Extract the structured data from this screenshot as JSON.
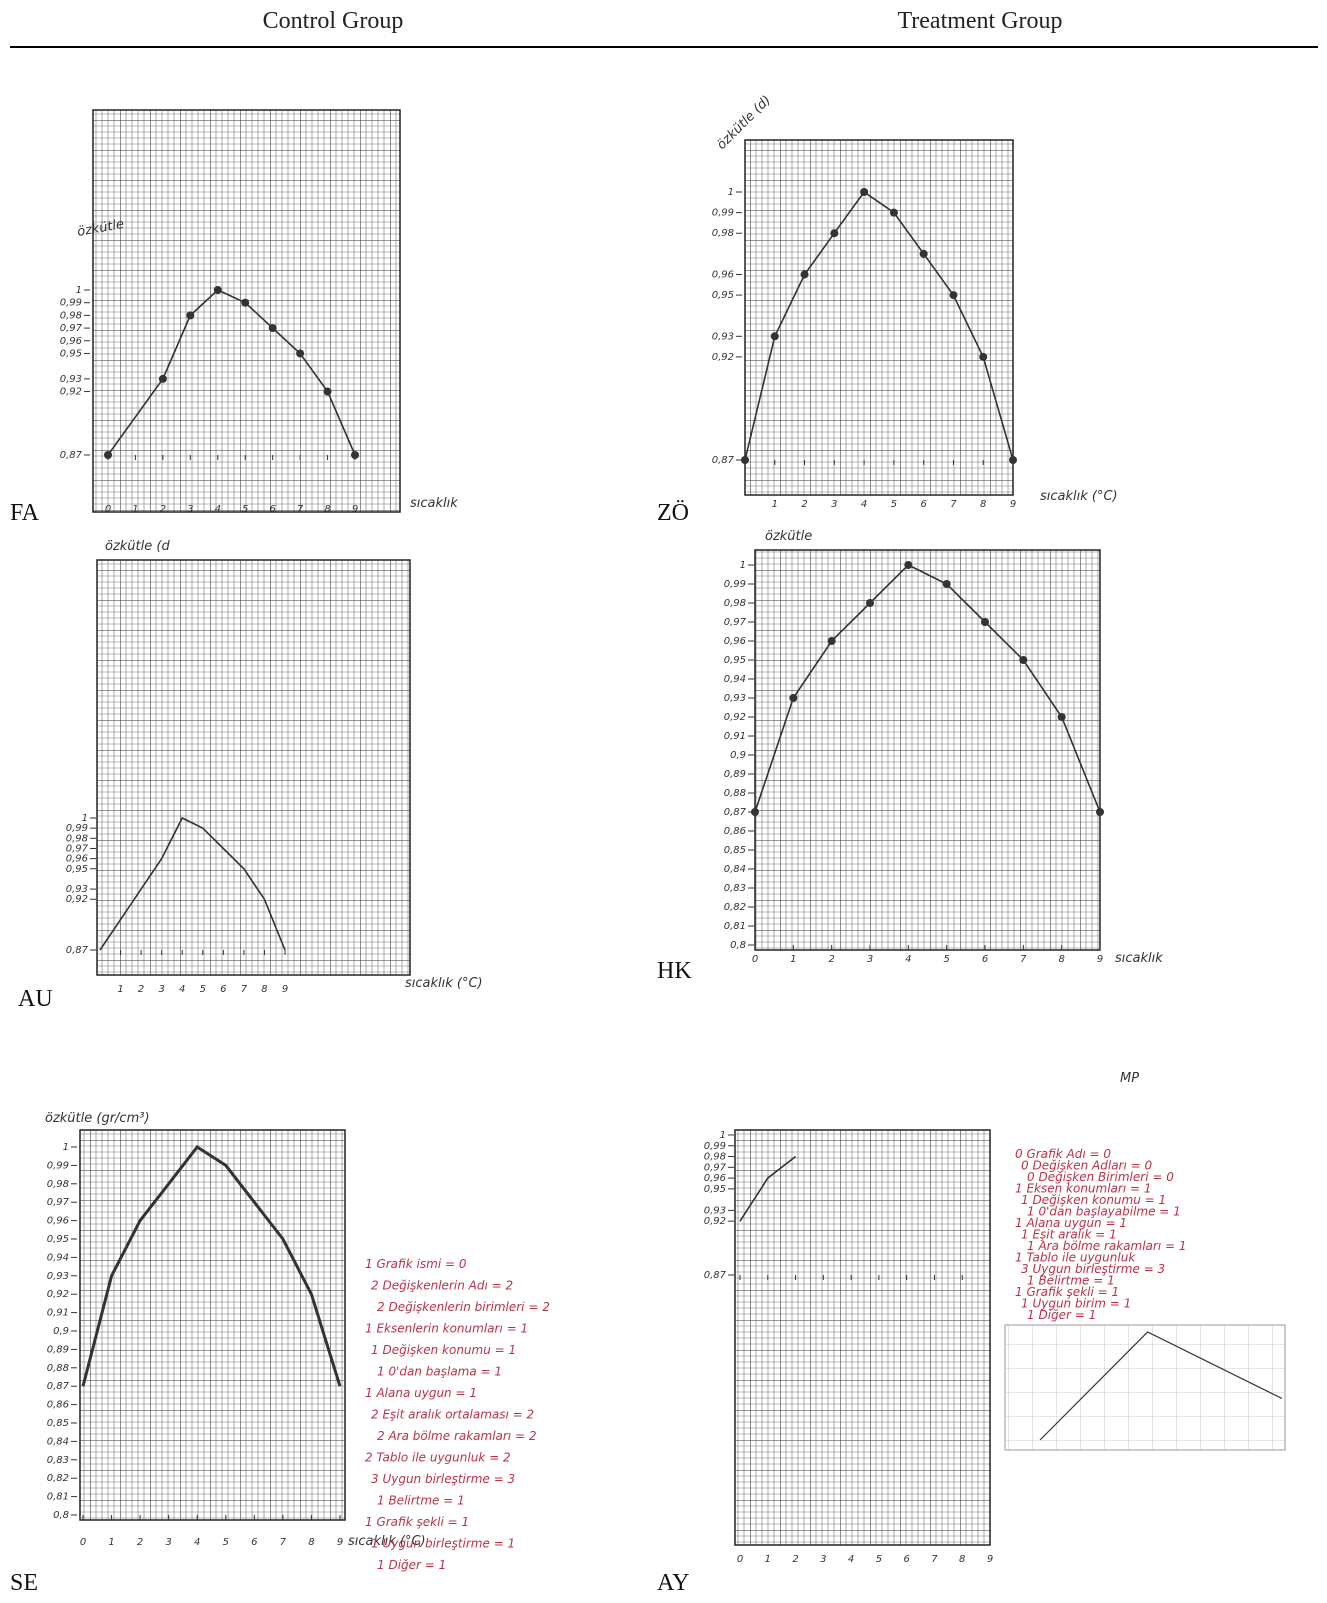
{
  "header": {
    "left": "Control Group",
    "right": "Treatment Group"
  },
  "panels": [
    {
      "label": "FA",
      "ylabel": "özkütle",
      "xlabel": "sıcaklık",
      "xlim": [
        0,
        9
      ],
      "ylim": [
        0.87,
        1
      ],
      "yticks": [
        1,
        {
          "value": 0.99,
          "label": "0,99"
        },
        {
          "value": 0.98,
          "label": "0,98"
        },
        {
          "value": 0.97,
          "label": "0,97"
        },
        {
          "value": 0.96,
          "label": "0,96"
        },
        {
          "value": 0.95,
          "label": "0,95"
        },
        {
          "value": 0.93,
          "label": "0,93"
        },
        {
          "value": 0.92,
          "label": "0,92"
        },
        {
          "value": 0.87,
          "label": "0,87"
        }
      ],
      "xticks": [
        0,
        1,
        2,
        3,
        4,
        5,
        6,
        7,
        8,
        9
      ],
      "x": [
        0,
        2,
        3,
        4,
        5,
        6,
        7,
        8,
        9
      ],
      "y": [
        0.87,
        0.93,
        0.98,
        1,
        0.99,
        0.97,
        0.95,
        0.92,
        0.87
      ]
    },
    {
      "label": "ZÖ",
      "ylabel": "özkütle (d)",
      "xlabel": "sıcaklık (°C)",
      "xlim": [
        0,
        9
      ],
      "ylim": [
        0.87,
        1
      ],
      "yticks": [
        1,
        {
          "value": 0.99,
          "label": "0,99"
        },
        {
          "value": 0.98,
          "label": "0,98"
        },
        {
          "value": 0.96,
          "label": "0,96"
        },
        {
          "value": 0.95,
          "label": "0,95"
        },
        {
          "value": 0.93,
          "label": "0,93"
        },
        {
          "value": 0.92,
          "label": "0,92"
        },
        {
          "value": 0.87,
          "label": "0,87"
        }
      ],
      "xticks": [
        1,
        2,
        3,
        4,
        5,
        6,
        7,
        8,
        9
      ],
      "x": [
        0,
        1,
        2,
        3,
        4,
        5,
        6,
        7,
        8,
        9
      ],
      "y": [
        0.87,
        0.93,
        0.96,
        0.98,
        1,
        0.99,
        0.97,
        0.95,
        0.92,
        0.87
      ]
    },
    {
      "label": "AU",
      "ylabel": "özkütle (d",
      "xlabel": "sıcaklık (°C)",
      "xlim": [
        0,
        9
      ],
      "ylim": [
        0.87,
        1
      ],
      "yticks": [
        1,
        {
          "value": 0.99,
          "label": "0,99"
        },
        {
          "value": 0.98,
          "label": "0,98"
        },
        {
          "value": 0.97,
          "label": "0,97"
        },
        {
          "value": 0.96,
          "label": "0,96"
        },
        {
          "value": 0.95,
          "label": "0,95"
        },
        {
          "value": 0.93,
          "label": "0,93"
        },
        {
          "value": 0.92,
          "label": "0,92"
        },
        {
          "value": 0.87,
          "label": "0,87"
        }
      ],
      "xticks": [
        1,
        2,
        3,
        4,
        5,
        6,
        7,
        8,
        9
      ],
      "x": [
        0,
        2,
        3,
        4,
        5,
        6,
        7,
        8,
        9
      ],
      "y": [
        0.87,
        0.93,
        0.96,
        1,
        0.99,
        0.97,
        0.95,
        0.92,
        0.87
      ]
    },
    {
      "label": "HK",
      "ylabel": "özkütle",
      "xlabel": "sıcaklık",
      "xlim": [
        0,
        9
      ],
      "ylim": [
        0.8,
        1
      ],
      "yticks": [
        1,
        {
          "value": 0.99,
          "label": "0,99"
        },
        {
          "value": 0.98,
          "label": "0,98"
        },
        {
          "value": 0.97,
          "label": "0,97"
        },
        {
          "value": 0.96,
          "label": "0,96"
        },
        {
          "value": 0.95,
          "label": "0,95"
        },
        {
          "value": 0.94,
          "label": "0,94"
        },
        {
          "value": 0.93,
          "label": "0,93"
        },
        {
          "value": 0.92,
          "label": "0,92"
        },
        {
          "value": 0.91,
          "label": "0,91"
        },
        {
          "value": 0.9,
          "label": "0,9"
        },
        {
          "value": 0.89,
          "label": "0,89"
        },
        {
          "value": 0.88,
          "label": "0,88"
        },
        {
          "value": 0.87,
          "label": "0,87"
        },
        {
          "value": 0.86,
          "label": "0,86"
        },
        {
          "value": 0.85,
          "label": "0,85"
        },
        {
          "value": 0.84,
          "label": "0,84"
        },
        {
          "value": 0.83,
          "label": "0,83"
        },
        {
          "value": 0.82,
          "label": "0,82"
        },
        {
          "value": 0.81,
          "label": "0,81"
        },
        {
          "value": 0.8,
          "label": "0,8"
        }
      ],
      "xticks": [
        0,
        1,
        2,
        3,
        4,
        5,
        6,
        7,
        8,
        9
      ],
      "x": [
        0,
        1,
        2,
        3,
        4,
        5,
        6,
        7,
        8,
        9
      ],
      "y": [
        0.87,
        0.93,
        0.96,
        0.98,
        1,
        0.99,
        0.97,
        0.95,
        0.92,
        0.87
      ]
    },
    {
      "label": "SE",
      "ylabel": "özkütle (gr/cm³)",
      "xlabel": "sıcaklık (°C)",
      "xlim": [
        0,
        9
      ],
      "ylim": [
        0.8,
        1
      ],
      "yticks": [
        1,
        {
          "value": 0.99,
          "label": "0,99"
        },
        {
          "value": 0.98,
          "label": "0,98"
        },
        {
          "value": 0.97,
          "label": "0,97"
        },
        {
          "value": 0.96,
          "label": "0,96"
        },
        {
          "value": 0.95,
          "label": "0,95"
        },
        {
          "value": 0.94,
          "label": "0,94"
        },
        {
          "value": 0.93,
          "label": "0,93"
        },
        {
          "value": 0.92,
          "label": "0,92"
        },
        {
          "value": 0.91,
          "label": "0,91"
        },
        {
          "value": 0.9,
          "label": "0,9"
        },
        {
          "value": 0.89,
          "label": "0,89"
        },
        {
          "value": 0.88,
          "label": "0,88"
        },
        {
          "value": 0.87,
          "label": "0,87"
        },
        {
          "value": 0.86,
          "label": "0,86"
        },
        {
          "value": 0.85,
          "label": "0,85"
        },
        {
          "value": 0.84,
          "label": "0,84"
        },
        {
          "value": 0.83,
          "label": "0,83"
        },
        {
          "value": 0.82,
          "label": "0,82"
        },
        {
          "value": 0.81,
          "label": "0,81"
        },
        {
          "value": 0.8,
          "label": "0,8"
        }
      ],
      "xticks": [
        0,
        1,
        2,
        3,
        4,
        5,
        6,
        7,
        8,
        9
      ],
      "x": [
        0,
        1,
        2,
        3,
        4,
        5,
        6,
        7,
        8,
        9
      ],
      "y": [
        0.87,
        0.93,
        0.96,
        0.98,
        1,
        0.99,
        0.97,
        0.95,
        0.92,
        0.87
      ],
      "notes": [
        "1 Grafik ismi = 0",
        "2 Değişkenlerin Adı = 2",
        "2 Değişkenlerin birimleri = 2",
        "1 Eksenlerin konumları = 1",
        "1 Değişken konumu = 1",
        "1 0'dan başlama = 1",
        "1 Alana uygun = 1",
        "2 Eşit aralık ortalaması = 2",
        "2 Ara bölme rakamları = 2",
        "2 Tablo ile uygunluk = 2",
        "3 Uygun birleştirme = 3",
        "1 Belirtme = 1",
        "1 Grafik şekli = 1",
        "1 Uygun birleştirme = 1",
        "1 Diğer = 1"
      ]
    },
    {
      "label": "AY",
      "mark": "MP",
      "xlim": [
        0,
        9
      ],
      "ylim": [
        0.87,
        1
      ],
      "yticks": [
        1,
        {
          "value": 0.99,
          "label": "0,99"
        },
        {
          "value": 0.98,
          "label": "0,98"
        },
        {
          "value": 0.97,
          "label": "0,97"
        },
        {
          "value": 0.96,
          "label": "0,96"
        },
        {
          "value": 0.95,
          "label": "0,95"
        },
        {
          "value": 0.93,
          "label": "0,93"
        },
        {
          "value": 0.92,
          "label": "0,92"
        },
        {
          "value": 0.87,
          "label": "0,87"
        }
      ],
      "xticks": [
        0,
        1,
        2,
        3,
        4,
        5,
        6,
        7,
        8,
        9
      ],
      "x": [
        0,
        1,
        2
      ],
      "y": [
        0.92,
        0.96,
        0.98
      ],
      "inset": {
        "x": [
          0,
          4,
          9
        ],
        "y": [
          0.87,
          1,
          0.92
        ]
      },
      "notes": [
        "0 Grafik Adı = 0",
        "0 Değişken Adları = 0",
        "0 Değişken Birimleri = 0",
        "1 Eksen konumları = 1",
        "1 Değişken konumu = 1",
        "1 0'dan başlayabilme = 1",
        "1 Alana uygun = 1",
        "1 Eşit aralık = 1",
        "1 Ara bölme rakamları = 1",
        "1 Tablo ile uygunluk",
        "3 Uygun birleştirme = 3",
        "1 Belirtme = 1",
        "1 Grafik şekli = 1",
        "1 Uygun birim = 1",
        "1 Diğer = 1"
      ]
    }
  ]
}
